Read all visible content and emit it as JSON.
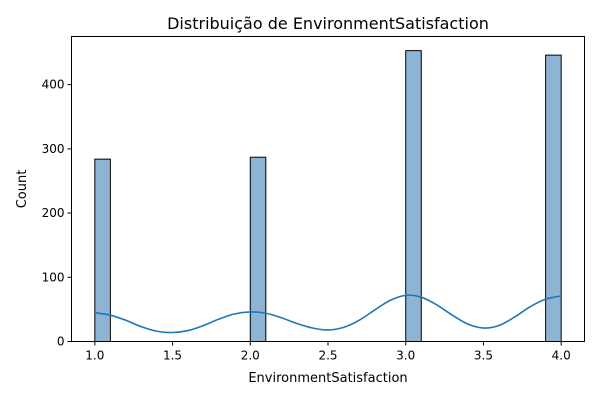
{
  "chart_data": {
    "type": "bar",
    "title": "Distribuição de EnvironmentSatisfaction",
    "xlabel": "EnvironmentSatisfaction",
    "ylabel": "Count",
    "xlim": [
      0.85,
      4.15
    ],
    "ylim": [
      0,
      475
    ],
    "xticks": [
      1.0,
      1.5,
      2.0,
      2.5,
      3.0,
      3.5,
      4.0
    ],
    "xtick_labels": [
      "1.0",
      "1.5",
      "2.0",
      "2.5",
      "3.0",
      "3.5",
      "4.0"
    ],
    "yticks": [
      0,
      100,
      200,
      300,
      400
    ],
    "ytick_labels": [
      "0",
      "100",
      "200",
      "300",
      "400"
    ],
    "bin_width": 0.1,
    "bars": [
      {
        "x_start": 1.0,
        "x_end": 1.1,
        "value": 284
      },
      {
        "x_start": 2.0,
        "x_end": 2.1,
        "value": 287
      },
      {
        "x_start": 3.0,
        "x_end": 3.1,
        "value": 453
      },
      {
        "x_start": 3.9,
        "x_end": 4.0,
        "value": 446
      }
    ],
    "bar_color": "#8db4d4",
    "kde": {
      "color": "#1f77b4",
      "points": [
        [
          1.0,
          45
        ],
        [
          1.1,
          41
        ],
        [
          1.2,
          33
        ],
        [
          1.3,
          23
        ],
        [
          1.4,
          16
        ],
        [
          1.5,
          14
        ],
        [
          1.6,
          17
        ],
        [
          1.7,
          25
        ],
        [
          1.8,
          35
        ],
        [
          1.9,
          43
        ],
        [
          2.0,
          46
        ],
        [
          2.1,
          44
        ],
        [
          2.2,
          37
        ],
        [
          2.3,
          28
        ],
        [
          2.4,
          21
        ],
        [
          2.5,
          18
        ],
        [
          2.6,
          22
        ],
        [
          2.7,
          33
        ],
        [
          2.8,
          49
        ],
        [
          2.9,
          64
        ],
        [
          3.0,
          72
        ],
        [
          3.1,
          69
        ],
        [
          3.2,
          57
        ],
        [
          3.3,
          41
        ],
        [
          3.4,
          27
        ],
        [
          3.5,
          21
        ],
        [
          3.6,
          25
        ],
        [
          3.7,
          38
        ],
        [
          3.8,
          54
        ],
        [
          3.9,
          66
        ],
        [
          4.0,
          71
        ]
      ]
    },
    "grid": false,
    "legend": "none"
  }
}
